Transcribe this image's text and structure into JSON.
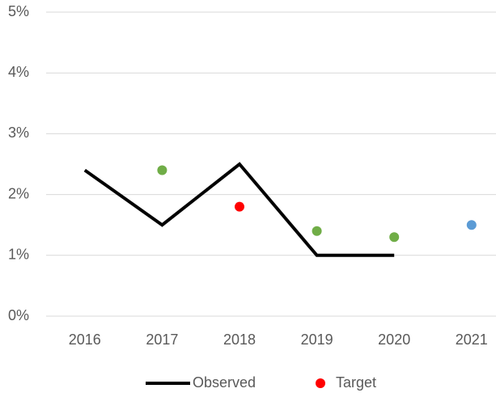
{
  "chart_data": {
    "type": "line",
    "categories": [
      "2016",
      "2017",
      "2018",
      "2019",
      "2020",
      "2021"
    ],
    "series": [
      {
        "name": "Observed",
        "color": "#000000",
        "values": [
          2.4,
          1.5,
          2.5,
          1.0,
          1.0,
          null
        ]
      },
      {
        "name": "Target",
        "color": "#ff0000",
        "values": [
          null,
          2.4,
          1.8,
          1.4,
          1.3,
          1.5
        ],
        "point_colors": [
          null,
          "#70ad47",
          "#ff0000",
          "#70ad47",
          "#70ad47",
          "#5b9bd5"
        ]
      }
    ],
    "ylim": [
      0,
      5
    ],
    "yticks": [
      {
        "value": 0,
        "label": "0%"
      },
      {
        "value": 1,
        "label": "1%"
      },
      {
        "value": 2,
        "label": "2%"
      },
      {
        "value": 3,
        "label": "3%"
      },
      {
        "value": 4,
        "label": "4%"
      },
      {
        "value": 5,
        "label": "5%"
      }
    ],
    "grid": true,
    "legend": "bottom"
  }
}
